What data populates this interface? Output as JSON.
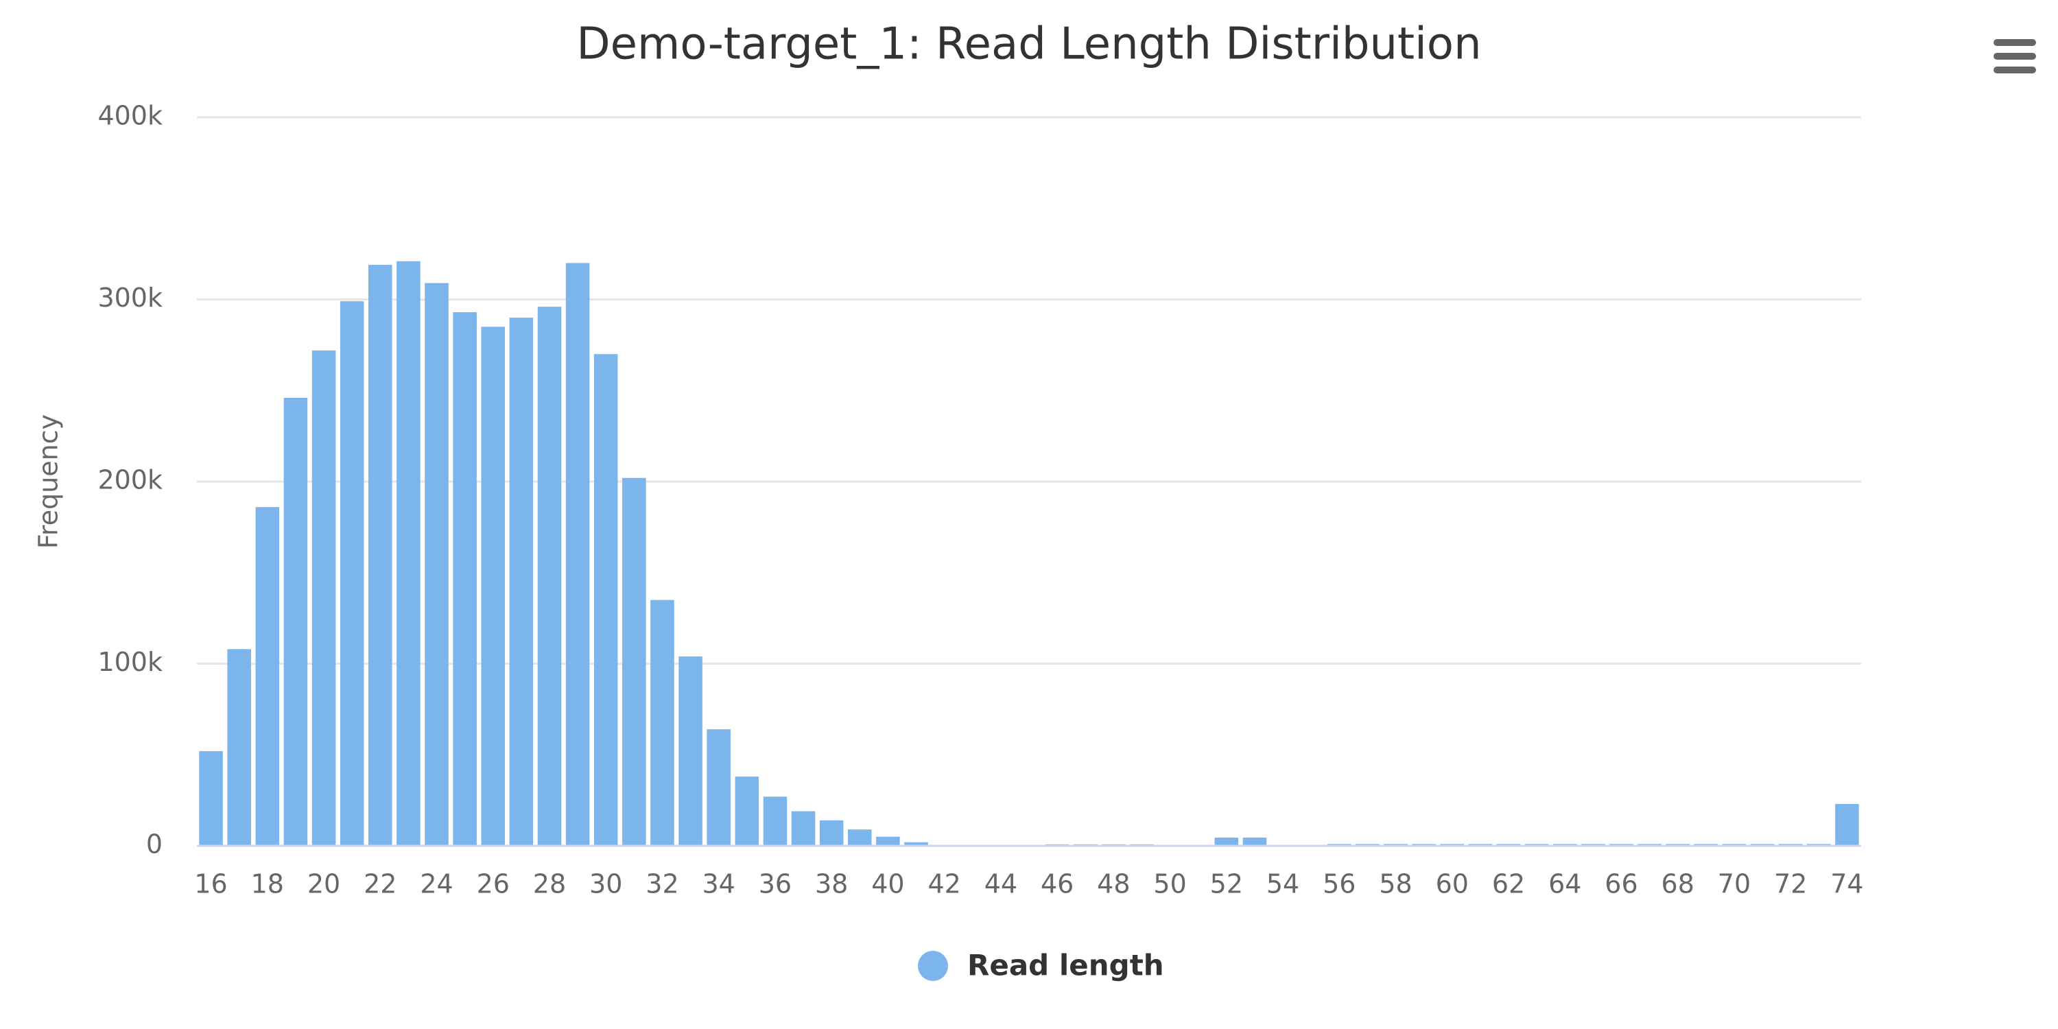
{
  "chart_data": {
    "type": "bar",
    "title": "Demo-target_1: Read Length Distribution",
    "y_label": "Frequency",
    "x": [
      16,
      17,
      18,
      19,
      20,
      21,
      22,
      23,
      24,
      25,
      26,
      27,
      28,
      29,
      30,
      31,
      32,
      33,
      34,
      35,
      36,
      37,
      38,
      39,
      40,
      41,
      42,
      43,
      44,
      45,
      46,
      47,
      48,
      49,
      50,
      51,
      52,
      53,
      54,
      55,
      56,
      57,
      58,
      59,
      60,
      61,
      62,
      63,
      64,
      65,
      66,
      67,
      68,
      69,
      70,
      71,
      72,
      73,
      74
    ],
    "series": [
      {
        "name": "Read length",
        "color": "#7cb5ec",
        "values": [
          52000,
          108000,
          186000,
          246000,
          272000,
          299000,
          319000,
          321000,
          309000,
          293000,
          285000,
          290000,
          296000,
          320000,
          270000,
          202000,
          135000,
          104000,
          64000,
          38000,
          27000,
          19000,
          14000,
          9000,
          5000,
          2000,
          300,
          300,
          300,
          300,
          800,
          800,
          800,
          800,
          300,
          300,
          4500,
          4500,
          500,
          500,
          1000,
          1000,
          1000,
          1000,
          1000,
          1000,
          1000,
          1000,
          1000,
          1000,
          1000,
          1000,
          1000,
          1000,
          1000,
          1000,
          1000,
          1000,
          23000
        ]
      }
    ],
    "xlim": [
      15.5,
      74.5
    ],
    "xticks": [
      16,
      18,
      20,
      22,
      24,
      26,
      28,
      30,
      32,
      34,
      36,
      38,
      40,
      42,
      44,
      46,
      48,
      50,
      52,
      54,
      56,
      58,
      60,
      62,
      64,
      66,
      68,
      70,
      72,
      74
    ],
    "ylim": [
      0,
      400000
    ],
    "yticks": [
      0,
      {
        "value": 100000,
        "label": "100k"
      },
      {
        "value": 200000,
        "label": "200k"
      },
      {
        "value": 300000,
        "label": "300k"
      },
      {
        "value": 400000,
        "label": "400k"
      }
    ],
    "grid": true
  }
}
